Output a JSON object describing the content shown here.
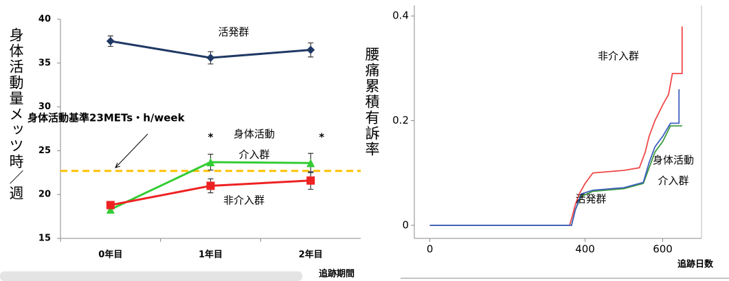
{
  "chart_data": [
    {
      "type": "line",
      "categories": [
        "0年目",
        "1年目",
        "2年目"
      ],
      "xlabel": "追跡期間",
      "ylabel": "身体活動量メッツ時／週",
      "ylim": [
        15,
        40
      ],
      "yticks": [
        15,
        20,
        25,
        30,
        35,
        40
      ],
      "series": [
        {
          "name": "活発群",
          "color": "#1f3864",
          "marker": "diamond",
          "values": [
            37.5,
            35.6,
            36.5
          ],
          "errors": [
            0.6,
            0.7,
            0.8
          ]
        },
        {
          "name": "身体活動介入群",
          "color": "#33cc33",
          "marker": "triangle",
          "values": [
            18.3,
            23.7,
            23.6
          ],
          "errors": [
            0.4,
            0.9,
            1.1
          ]
        },
        {
          "name": "非介入群",
          "color": "#ee2222",
          "marker": "square",
          "values": [
            18.8,
            21.0,
            21.6
          ],
          "errors": [
            0.4,
            0.8,
            1.0
          ]
        }
      ],
      "reference_line": {
        "value": 22.7,
        "label": "身体活動基準23METs・h/week",
        "color": "#ffc000"
      },
      "significance_marks": [
        null,
        "*",
        "*"
      ]
    },
    {
      "type": "step",
      "xlabel": "追跡日数",
      "ylabel": "腰痛累積有訴率",
      "xlim": [
        -40,
        700
      ],
      "xticks": [
        0,
        400,
        600
      ],
      "ylim": [
        -0.025,
        0.42
      ],
      "yticks": [
        0,
        0.2,
        0.4
      ],
      "series": [
        {
          "name": "非介入群",
          "color": "#f04848",
          "x": [
            0,
            360,
            368,
            375,
            385,
            400,
            420,
            500,
            540,
            555,
            565,
            580,
            600,
            615,
            625,
            650,
            650
          ],
          "values": [
            0,
            0,
            0.02,
            0.04,
            0.06,
            0.08,
            0.1,
            0.105,
            0.11,
            0.14,
            0.17,
            0.2,
            0.23,
            0.25,
            0.29,
            0.29,
            0.38
          ]
        },
        {
          "name": "身体活動介入群",
          "color": "#3a9a3a",
          "x": [
            0,
            365,
            375,
            390,
            420,
            500,
            550,
            565,
            580,
            600,
            620,
            650
          ],
          "values": [
            0,
            0,
            0.03,
            0.055,
            0.065,
            0.07,
            0.08,
            0.11,
            0.14,
            0.16,
            0.19,
            0.19
          ]
        },
        {
          "name": "活発群",
          "color": "#4060c0",
          "x": [
            0,
            365,
            375,
            390,
            420,
            500,
            550,
            565,
            580,
            600,
            620,
            642,
            642
          ],
          "values": [
            0,
            0,
            0.03,
            0.06,
            0.067,
            0.072,
            0.082,
            0.12,
            0.15,
            0.17,
            0.195,
            0.195,
            0.26
          ]
        }
      ]
    }
  ]
}
